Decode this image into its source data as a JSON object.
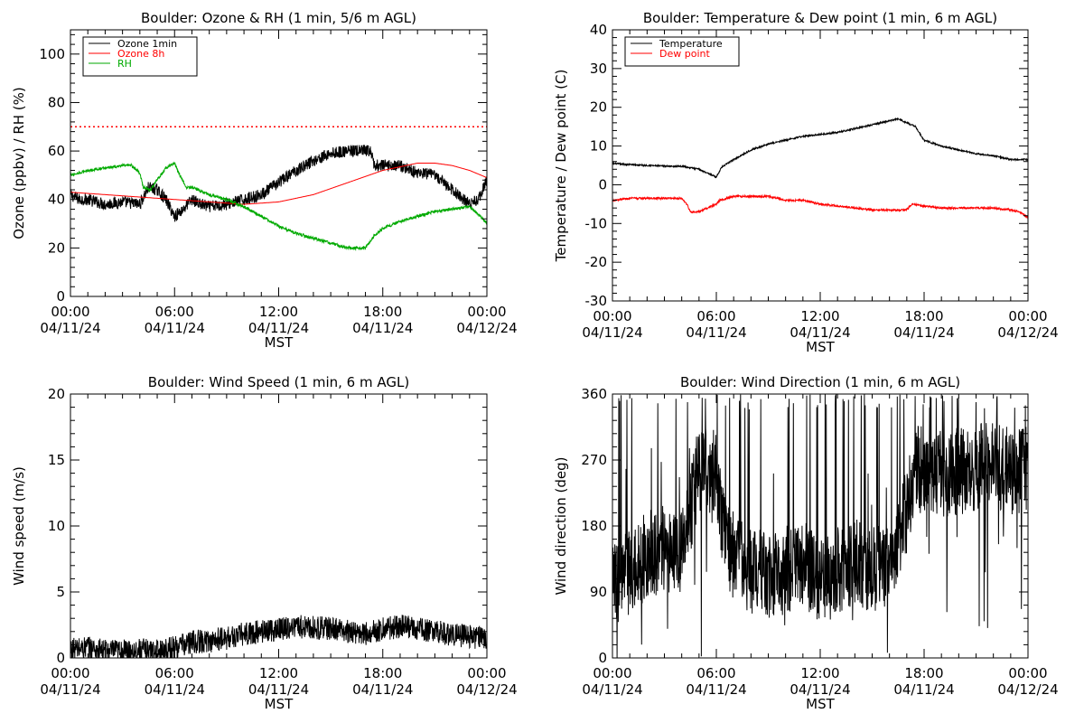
{
  "figure": {
    "background": "#ffffff"
  },
  "chart_data": [
    {
      "id": "ozone",
      "type": "line",
      "title": "Boulder: Ozone & RH (1 min, 5/6 m AGL)",
      "xlabel": "MST",
      "ylabel": "Ozone (ppbv) / RH (%)",
      "xlim": [
        0,
        24
      ],
      "ylim": [
        0,
        110
      ],
      "yticks": [
        0,
        20,
        40,
        60,
        80,
        100
      ],
      "xticks": [
        {
          "x": 0,
          "time": "00:00",
          "date": "04/11/24"
        },
        {
          "x": 6,
          "time": "06:00",
          "date": "04/11/24"
        },
        {
          "x": 12,
          "time": "12:00",
          "date": "04/11/24"
        },
        {
          "x": 18,
          "time": "18:00",
          "date": "04/11/24"
        },
        {
          "x": 24,
          "time": "00:00",
          "date": "04/12/24"
        }
      ],
      "legend": {
        "placement": "top-left",
        "boxed": true
      },
      "reference_line": {
        "y": 70,
        "color": "#ff0000",
        "style": "dotted"
      },
      "series": [
        {
          "name": "Ozone 1min",
          "color": "#000000",
          "noise": 2.5,
          "x": [
            0,
            0.5,
            1,
            2,
            3,
            4,
            4.5,
            5,
            5.5,
            6,
            6.5,
            7,
            7.5,
            8,
            9,
            10,
            11,
            12,
            13,
            14,
            15,
            16,
            17,
            17.3,
            17.5,
            18,
            19,
            20,
            21,
            22,
            22.5,
            23,
            23.5,
            24
          ],
          "y": [
            42,
            40,
            40,
            38,
            39,
            38,
            45,
            44,
            40,
            33,
            36,
            40,
            38,
            37,
            38,
            40,
            42,
            47,
            52,
            56,
            59,
            60,
            60,
            60,
            54,
            54,
            54,
            51,
            50,
            44,
            41,
            38,
            40,
            48
          ]
        },
        {
          "name": "Ozone 8h",
          "color": "#ff0000",
          "noise": 0,
          "x": [
            0,
            2,
            4,
            6,
            8,
            10,
            12,
            14,
            16,
            18,
            20,
            21,
            22,
            23,
            24
          ],
          "y": [
            43,
            42,
            41,
            40,
            39,
            38,
            39,
            42,
            47,
            52,
            55,
            55,
            54,
            52,
            49
          ]
        },
        {
          "name": "RH",
          "color": "#00aa00",
          "noise": 0.6,
          "x": [
            0,
            0.5,
            1,
            2,
            3,
            3.5,
            4,
            4.2,
            4.6,
            5,
            5.5,
            6,
            6.3,
            6.7,
            7,
            8,
            9,
            10,
            11,
            12,
            13,
            14,
            15,
            16,
            17,
            17.5,
            18,
            19,
            20,
            21,
            22,
            23,
            23.5,
            24
          ],
          "y": [
            50,
            51,
            52,
            53,
            54,
            54,
            51,
            45,
            44,
            48,
            53,
            55,
            50,
            45,
            45,
            42,
            40,
            37,
            33,
            29,
            26,
            24,
            22,
            20,
            20,
            25,
            28,
            31,
            33,
            35,
            36,
            37,
            34,
            30
          ]
        }
      ]
    },
    {
      "id": "temperature",
      "type": "line",
      "title": "Boulder: Temperature & Dew point (1 min, 6 m AGL)",
      "xlabel": "MST",
      "ylabel": "Temperature / Dew point (C)",
      "xlim": [
        0,
        24
      ],
      "ylim": [
        -30,
        40
      ],
      "yticks": [
        -30,
        -20,
        -10,
        0,
        10,
        20,
        30,
        40
      ],
      "xticks": [
        {
          "x": 0,
          "time": "00:00",
          "date": "04/11/24"
        },
        {
          "x": 6,
          "time": "06:00",
          "date": "04/11/24"
        },
        {
          "x": 12,
          "time": "12:00",
          "date": "04/11/24"
        },
        {
          "x": 18,
          "time": "18:00",
          "date": "04/11/24"
        },
        {
          "x": 24,
          "time": "00:00",
          "date": "04/12/24"
        }
      ],
      "legend": {
        "placement": "top-left",
        "boxed": true
      },
      "series": [
        {
          "name": "Temperature",
          "color": "#000000",
          "noise": 0.2,
          "x": [
            0,
            1,
            2,
            3,
            4,
            5,
            5.5,
            6,
            6.3,
            7,
            8,
            9,
            10,
            11,
            12,
            13,
            14,
            15,
            16,
            16.5,
            17,
            17.5,
            18,
            19,
            20,
            21,
            22,
            23,
            24
          ],
          "y": [
            5.5,
            5.2,
            5,
            4.8,
            4.8,
            4,
            3,
            2,
            4.5,
            6.5,
            9,
            10.5,
            11.5,
            12.5,
            13,
            13.5,
            14.5,
            15.5,
            16.5,
            17,
            16,
            15,
            11.5,
            10,
            9,
            8,
            7.5,
            6.5,
            6.5
          ]
        },
        {
          "name": "Dew point",
          "color": "#ff0000",
          "noise": 0.25,
          "x": [
            0,
            1,
            2,
            3,
            4,
            4.3,
            4.5,
            5,
            5.5,
            6,
            6.2,
            7,
            8,
            9,
            10,
            11,
            12,
            13,
            14,
            15,
            16,
            17,
            17.3,
            18,
            19,
            20,
            21,
            22,
            23,
            23.5,
            24
          ],
          "y": [
            -4,
            -3.5,
            -3.5,
            -3.5,
            -3.5,
            -5,
            -7,
            -7,
            -6,
            -5,
            -4,
            -3,
            -3,
            -3,
            -4,
            -4,
            -5,
            -5.5,
            -6,
            -6.5,
            -6.5,
            -6.5,
            -5,
            -5.5,
            -6,
            -6,
            -6,
            -6,
            -6.5,
            -7,
            -8.5
          ]
        }
      ]
    },
    {
      "id": "wind-speed",
      "type": "line",
      "title": "Boulder: Wind Speed (1 min, 6 m AGL)",
      "xlabel": "MST",
      "ylabel": "Wind speed (m/s)",
      "xlim": [
        0,
        24
      ],
      "ylim": [
        0,
        20
      ],
      "yticks": [
        0,
        5,
        10,
        15,
        20
      ],
      "xticks": [
        {
          "x": 0,
          "time": "00:00",
          "date": "04/11/24"
        },
        {
          "x": 6,
          "time": "06:00",
          "date": "04/11/24"
        },
        {
          "x": 12,
          "time": "12:00",
          "date": "04/11/24"
        },
        {
          "x": 18,
          "time": "18:00",
          "date": "04/11/24"
        },
        {
          "x": 24,
          "time": "00:00",
          "date": "04/12/24"
        }
      ],
      "series": [
        {
          "name": "",
          "color": "#000000",
          "noise": 0.9,
          "floor": 0,
          "x": [
            0,
            1,
            2,
            3,
            4,
            5,
            6,
            7,
            8,
            9,
            10,
            11,
            12,
            13,
            14,
            15,
            16,
            17,
            18,
            19,
            20,
            21,
            22,
            23,
            24
          ],
          "y": [
            0.6,
            0.8,
            0.5,
            0.5,
            0.6,
            0.5,
            0.8,
            1.2,
            1.3,
            1.5,
            1.8,
            2.0,
            2.2,
            2.4,
            2.3,
            2.2,
            2.0,
            1.8,
            2.2,
            2.4,
            2.2,
            2.0,
            1.8,
            1.6,
            1.5
          ]
        }
      ]
    },
    {
      "id": "wind-direction",
      "type": "line",
      "title": "Boulder: Wind Direction (1 min, 6 m AGL)",
      "xlabel": "MST",
      "ylabel": "Wind direction (deg)",
      "xlim": [
        0,
        24
      ],
      "ylim": [
        0,
        360
      ],
      "yticks": [
        0,
        90,
        180,
        270,
        360
      ],
      "xticks": [
        {
          "x": 0,
          "time": "00:00",
          "date": "04/11/24"
        },
        {
          "x": 6,
          "time": "06:00",
          "date": "04/11/24"
        },
        {
          "x": 12,
          "time": "12:00",
          "date": "04/11/24"
        },
        {
          "x": 18,
          "time": "18:00",
          "date": "04/11/24"
        },
        {
          "x": 24,
          "time": "00:00",
          "date": "04/12/24"
        }
      ],
      "series": [
        {
          "name": "",
          "color": "#000000",
          "noise": 0,
          "erratic": true,
          "x": [
            0,
            1,
            2,
            3,
            4,
            5,
            5.5,
            6,
            6.5,
            7,
            8,
            9,
            10,
            11,
            12,
            13,
            14,
            15,
            16,
            17,
            17.5,
            18,
            19,
            20,
            21,
            22,
            23,
            24
          ],
          "y": [
            100,
            120,
            140,
            150,
            140,
            260,
            255,
            250,
            160,
            140,
            120,
            110,
            120,
            130,
            100,
            120,
            130,
            120,
            120,
            200,
            260,
            255,
            250,
            255,
            260,
            265,
            255,
            260
          ]
        }
      ]
    }
  ]
}
